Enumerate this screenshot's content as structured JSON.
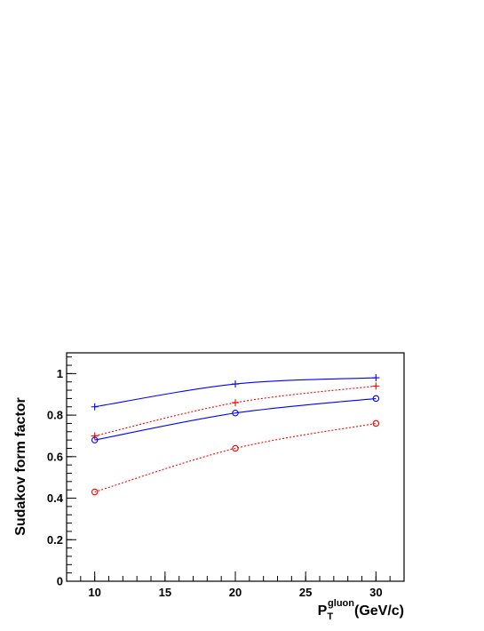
{
  "chart_data": {
    "type": "line",
    "xlabel": {
      "base": "P",
      "sub": "T",
      "sup": "gluon",
      "unit": "(GeV/c)"
    },
    "ylabel": "Sudakov form factor",
    "x": [
      10,
      20,
      30
    ],
    "series": [
      {
        "color": "#0000ff",
        "marker": "plus",
        "line": "solid",
        "values": [
          0.84,
          0.95,
          0.98
        ]
      },
      {
        "color": "#ff0000",
        "marker": "plus",
        "line": "dotted",
        "values": [
          0.7,
          0.86,
          0.94
        ]
      },
      {
        "color": "#0000ff",
        "marker": "circle",
        "line": "solid",
        "values": [
          0.68,
          0.81,
          0.88
        ]
      },
      {
        "color": "#ff0000",
        "marker": "circle",
        "line": "dotted",
        "values": [
          0.43,
          0.64,
          0.76
        ]
      }
    ],
    "xlim": [
      8,
      32
    ],
    "xticks": [
      10,
      15,
      20,
      25,
      30
    ],
    "ylim": [
      0,
      1.1
    ],
    "yticks": [
      0,
      0.2,
      0.4,
      0.6,
      0.8,
      1
    ],
    "grid": false
  }
}
